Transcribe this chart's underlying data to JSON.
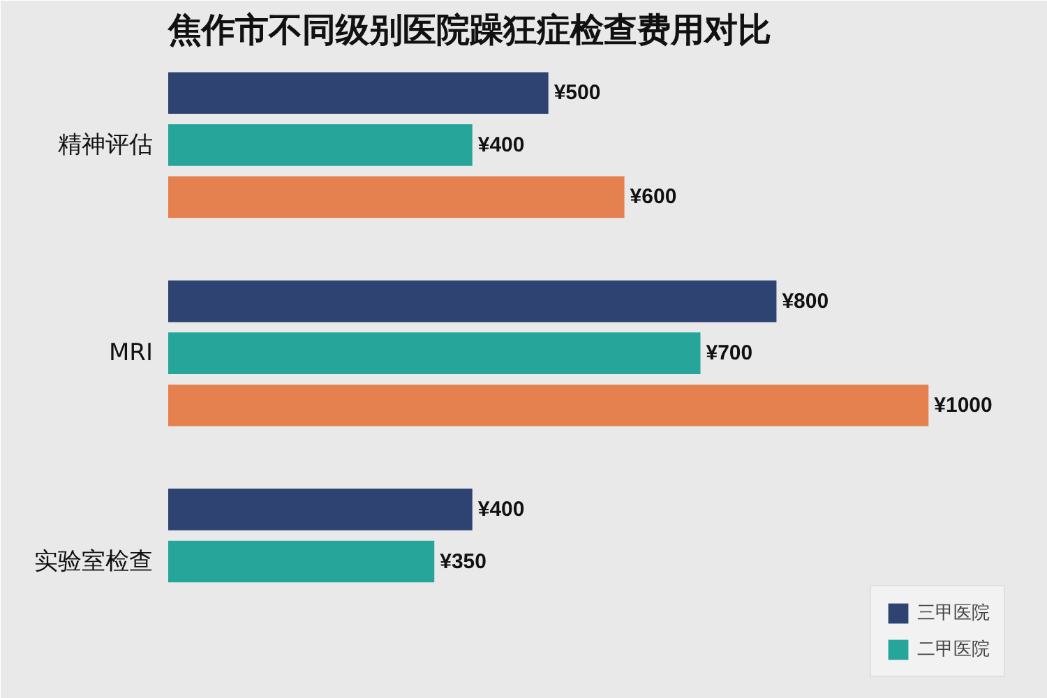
{
  "chart_data": {
    "type": "bar",
    "orientation": "horizontal",
    "title": "焦作市不同级别医院躁狂症检查费用对比",
    "categories": [
      "精神评估",
      "MRI",
      "实验室检查"
    ],
    "legend": "bottom right",
    "series": [
      {
        "name": "三甲医院",
        "color": "#2e4372",
        "values": [
          500,
          800,
          400
        ],
        "value_labels": [
          "¥500",
          "¥800",
          "¥400"
        ]
      },
      {
        "name": "二甲医院",
        "color": "#26a69a",
        "values": [
          400,
          700,
          350
        ],
        "value_labels": [
          "¥400",
          "¥700",
          "¥350"
        ]
      },
      {
        "color": "#e5804f",
        "values": [
          600,
          1000,
          null
        ],
        "value_labels": [
          "¥600",
          "¥1000",
          null
        ]
      }
    ]
  }
}
